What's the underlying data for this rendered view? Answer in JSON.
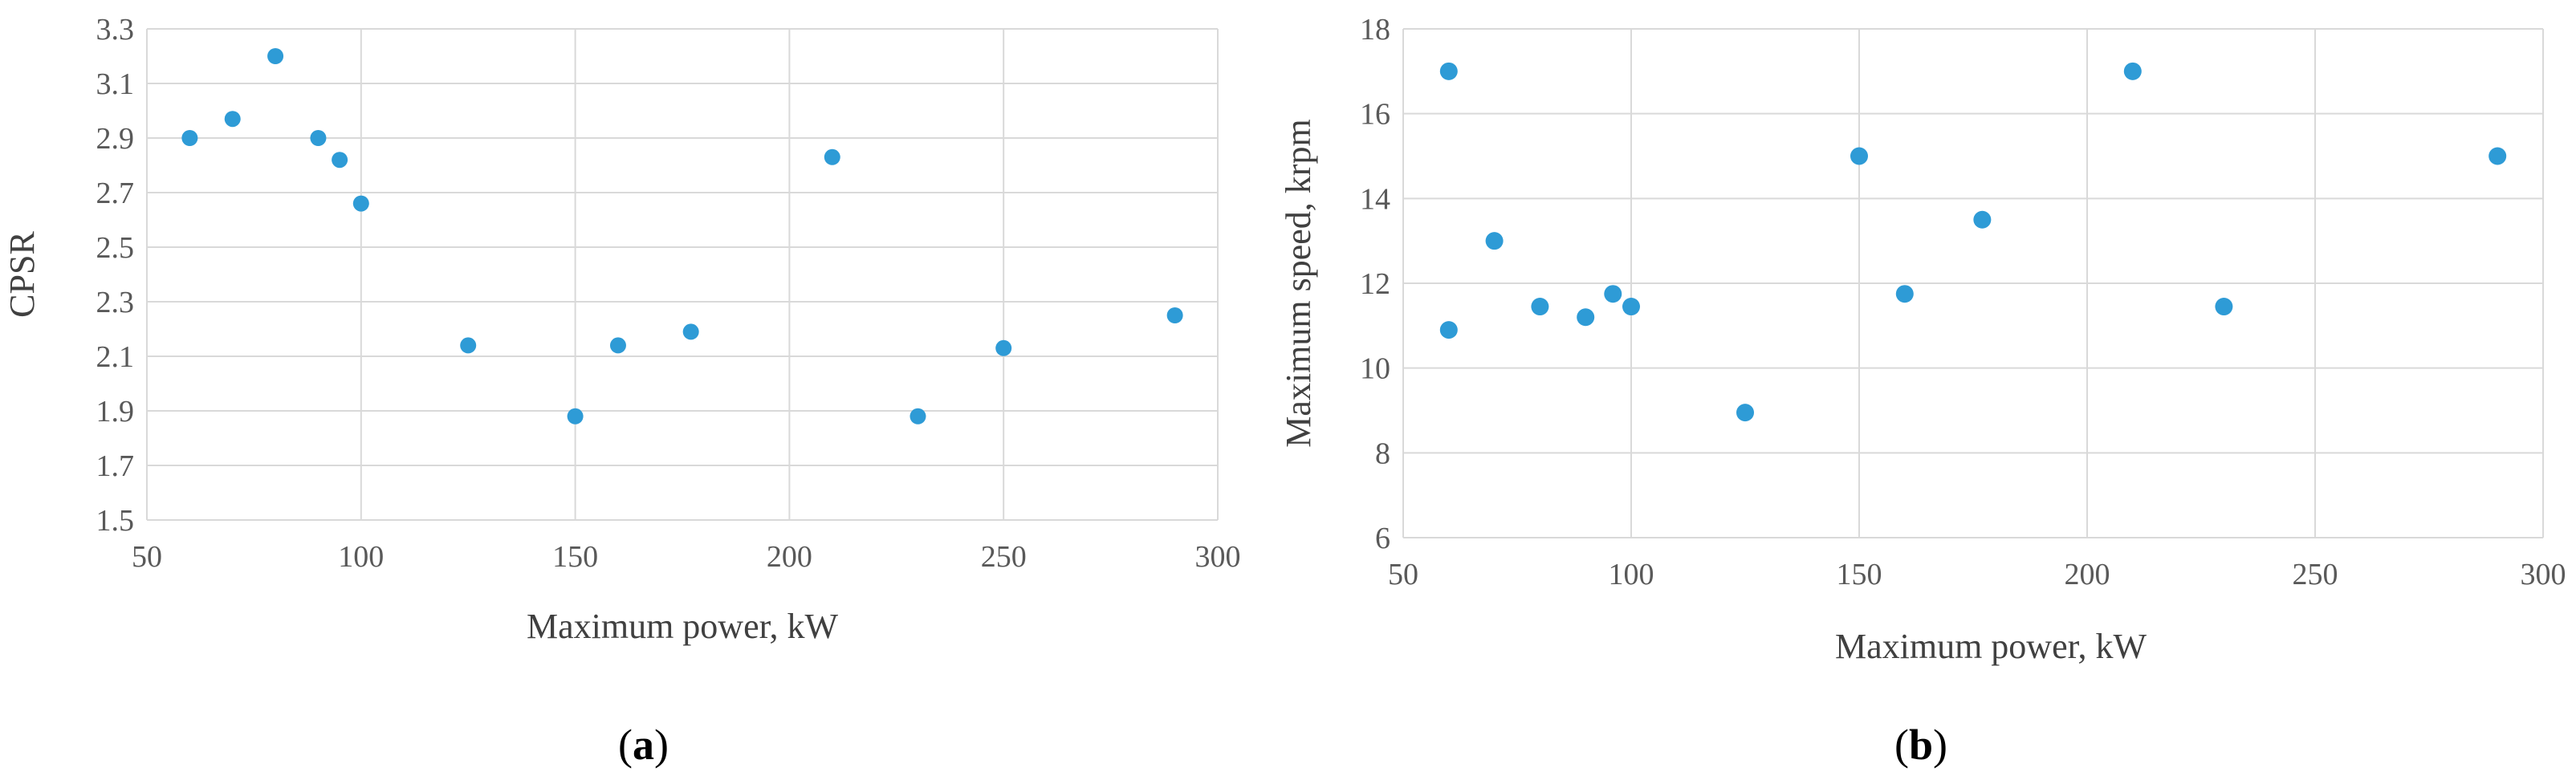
{
  "chart_data": [
    {
      "type": "scatter",
      "panel_label": "a",
      "xlabel": "Maximum power, kW",
      "ylabel": "CPSR",
      "xlim": [
        50,
        300
      ],
      "ylim": [
        1.5,
        3.3
      ],
      "x_ticks": [
        "50",
        "100",
        "150",
        "200",
        "250",
        "300"
      ],
      "y_ticks": [
        "1.5",
        "1.7",
        "1.9",
        "2.1",
        "2.3",
        "2.5",
        "2.7",
        "2.9",
        "3.1",
        "3.3"
      ],
      "grid": true,
      "color": "#2e9bd6",
      "points": [
        {
          "x": 60,
          "y": 2.9
        },
        {
          "x": 70,
          "y": 2.97
        },
        {
          "x": 80,
          "y": 3.2
        },
        {
          "x": 90,
          "y": 2.9
        },
        {
          "x": 95,
          "y": 2.82
        },
        {
          "x": 100,
          "y": 2.66
        },
        {
          "x": 125,
          "y": 2.14
        },
        {
          "x": 150,
          "y": 1.88
        },
        {
          "x": 160,
          "y": 2.14
        },
        {
          "x": 177,
          "y": 2.19
        },
        {
          "x": 210,
          "y": 2.83
        },
        {
          "x": 230,
          "y": 1.88
        },
        {
          "x": 250,
          "y": 2.13
        },
        {
          "x": 290,
          "y": 2.25
        }
      ]
    },
    {
      "type": "scatter",
      "panel_label": "b",
      "xlabel": "Maximum power, kW",
      "ylabel": "Maximum speed, krpm",
      "xlim": [
        50,
        300
      ],
      "ylim": [
        6,
        18
      ],
      "x_ticks": [
        "50",
        "100",
        "150",
        "200",
        "250",
        "300"
      ],
      "y_ticks": [
        "6",
        "8",
        "10",
        "12",
        "14",
        "16",
        "18"
      ],
      "grid": true,
      "color": "#2e9bd6",
      "points": [
        {
          "x": 60,
          "y": 17
        },
        {
          "x": 60,
          "y": 10.9
        },
        {
          "x": 70,
          "y": 13
        },
        {
          "x": 80,
          "y": 11.45
        },
        {
          "x": 90,
          "y": 11.2
        },
        {
          "x": 96,
          "y": 11.75
        },
        {
          "x": 100,
          "y": 11.45
        },
        {
          "x": 125,
          "y": 8.95
        },
        {
          "x": 150,
          "y": 15
        },
        {
          "x": 160,
          "y": 11.75
        },
        {
          "x": 177,
          "y": 13.5
        },
        {
          "x": 210,
          "y": 17
        },
        {
          "x": 230,
          "y": 11.45
        },
        {
          "x": 290,
          "y": 15
        }
      ]
    }
  ]
}
